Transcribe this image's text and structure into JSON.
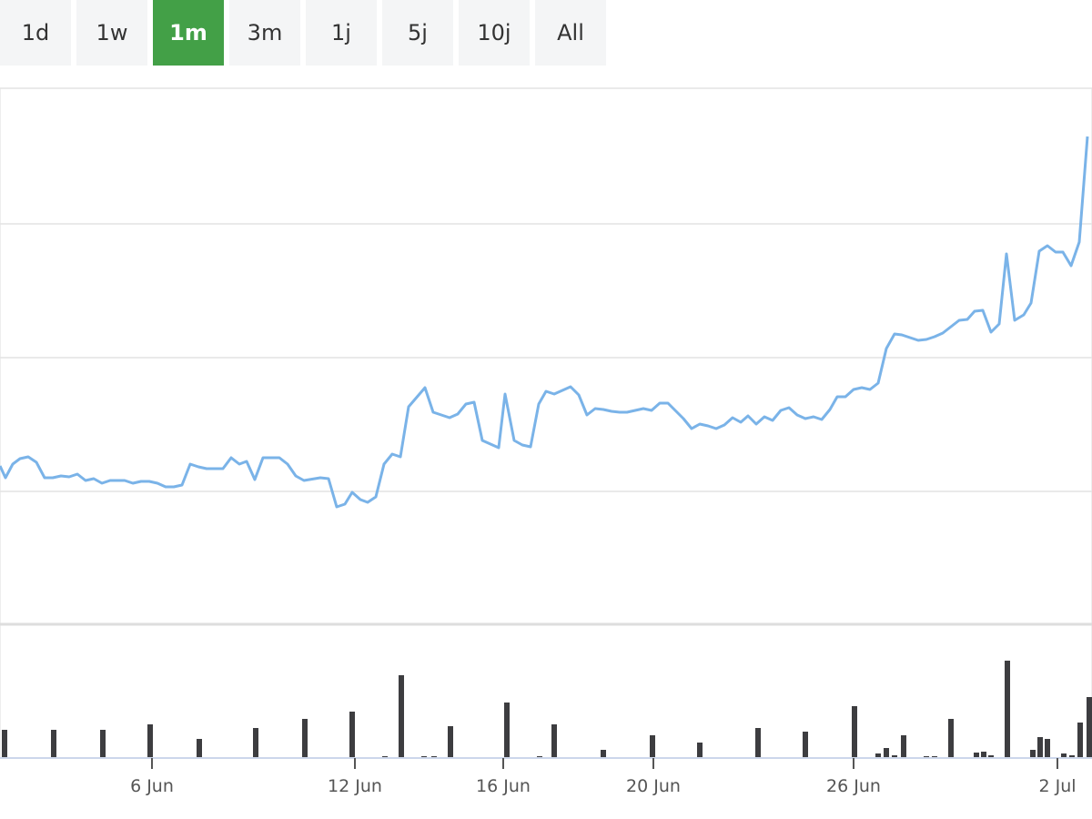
{
  "buttons": [
    "1d",
    "1w",
    "1m",
    "3m",
    "1j",
    "5j",
    "10j",
    "All"
  ],
  "active_button": "1m",
  "chart_data": [
    {
      "type": "line",
      "color": "#7ab3e8",
      "grid": true,
      "xlim": [
        0,
        1200
      ],
      "ylim": [
        0,
        588
      ],
      "yticks": [
        145,
        292,
        439,
        588
      ],
      "x": [
        0,
        6,
        14,
        22,
        31,
        40,
        49,
        58,
        67,
        76,
        85,
        94,
        103,
        112,
        121,
        137,
        146,
        155,
        164,
        173,
        182,
        191,
        200,
        209,
        218,
        227,
        245,
        254,
        263,
        271,
        280,
        289,
        307,
        316,
        325,
        334,
        352,
        361,
        370,
        379,
        387,
        396,
        404,
        413,
        422,
        431,
        440,
        449,
        467,
        476,
        494,
        503,
        512,
        521,
        530,
        548,
        555,
        565,
        574,
        583,
        592,
        600,
        609,
        627,
        636,
        645,
        654,
        663,
        672,
        681,
        689,
        707,
        716,
        725,
        734,
        751,
        760,
        769,
        778,
        787,
        796,
        805,
        814,
        822,
        831,
        840,
        849,
        858,
        867,
        876,
        885,
        894,
        903,
        912,
        920,
        929,
        938,
        947,
        956,
        965,
        974,
        983,
        991,
        1000,
        1009,
        1018,
        1027,
        1036,
        1045,
        1054,
        1063,
        1071,
        1080,
        1089,
        1098,
        1106,
        1115,
        1125,
        1133,
        1142,
        1151,
        1160,
        1168,
        1177,
        1186,
        1195
      ],
      "values": [
        173,
        160,
        175,
        181,
        183,
        177,
        160,
        160,
        162,
        161,
        164,
        157,
        159,
        154,
        157,
        157,
        154,
        156,
        156,
        154,
        150,
        150,
        152,
        175,
        172,
        170,
        170,
        182,
        175,
        178,
        158,
        182,
        182,
        175,
        162,
        157,
        160,
        159,
        128,
        131,
        144,
        136,
        133,
        139,
        175,
        186,
        183,
        238,
        259,
        232,
        226,
        230,
        241,
        243,
        201,
        193,
        252,
        201,
        196,
        194,
        241,
        255,
        252,
        260,
        251,
        229,
        236,
        235,
        233,
        232,
        232,
        236,
        234,
        242,
        242,
        225,
        214,
        219,
        217,
        214,
        218,
        226,
        221,
        228,
        219,
        227,
        223,
        234,
        237,
        229,
        225,
        227,
        224,
        235,
        249,
        249,
        257,
        259,
        257,
        264,
        302,
        318,
        317,
        314,
        311,
        312,
        315,
        319,
        326,
        333,
        334,
        343,
        344,
        320,
        329,
        406,
        333,
        339,
        352,
        409,
        415,
        408,
        408,
        393,
        419,
        535
      ]
    },
    {
      "type": "bar",
      "color": "#3d3d40",
      "xlim": [
        0,
        1200
      ],
      "ylim": [
        0,
        145
      ],
      "x": [
        5,
        59,
        113,
        165,
        219,
        281,
        335,
        387,
        423,
        441,
        466,
        477,
        495,
        557,
        593,
        609,
        663,
        717,
        769,
        833,
        885,
        939,
        965,
        974,
        983,
        993,
        1018,
        1027,
        1045,
        1073,
        1081,
        1089,
        1107,
        1135,
        1143,
        1151,
        1169,
        1178,
        1187,
        1197
      ],
      "values": [
        31,
        31,
        31,
        37,
        21,
        33,
        43,
        51,
        2,
        91,
        2,
        2,
        35,
        61,
        2,
        37,
        9,
        25,
        17,
        33,
        29,
        57,
        5,
        11,
        3,
        25,
        2,
        2,
        43,
        6,
        7,
        3,
        107,
        9,
        23,
        21,
        5,
        3,
        39,
        67
      ],
      "xticks": [
        {
          "value": 167,
          "label": "6 Jun"
        },
        {
          "value": 390,
          "label": "12 Jun"
        },
        {
          "value": 553,
          "label": "16 Jun"
        },
        {
          "value": 718,
          "label": "20 Jun"
        },
        {
          "value": 938,
          "label": "26 Jun"
        },
        {
          "value": 1162,
          "label": "2 Jul"
        }
      ]
    }
  ]
}
